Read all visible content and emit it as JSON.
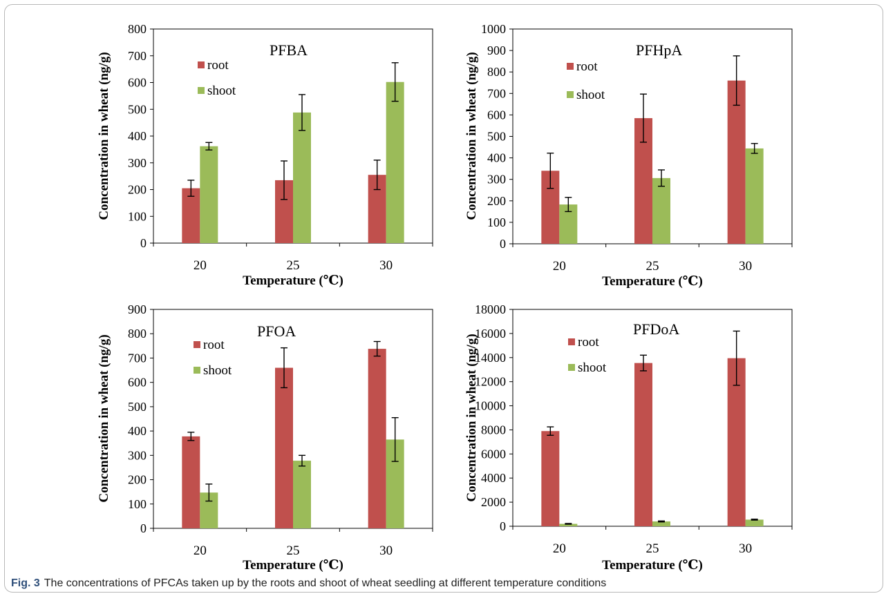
{
  "figure": {
    "caption_label": "Fig. 3",
    "caption_text": "The concentrations of PFCAs taken up by the roots and shoot of wheat seedling at different temperature conditions"
  },
  "colors": {
    "root": "#c0504d",
    "shoot": "#9bbb59",
    "axis": "#000000"
  },
  "chart_data": [
    {
      "type": "bar",
      "title": "PFBA",
      "categories": [
        "20",
        "25",
        "30"
      ],
      "series": [
        {
          "name": "root",
          "values": [
            205,
            235,
            255
          ],
          "errors": [
            30,
            72,
            55
          ]
        },
        {
          "name": "shoot",
          "values": [
            362,
            488,
            602
          ],
          "errors": [
            14,
            67,
            72
          ]
        }
      ],
      "xlabel": "Temperature (℃)",
      "ylabel": "Concentration in wheat (ng/g)",
      "ylim": [
        0,
        800
      ],
      "yticks": [
        0,
        100,
        200,
        300,
        400,
        500,
        600,
        700,
        800
      ],
      "legend": "top-left"
    },
    {
      "type": "bar",
      "title": "PFHpA",
      "categories": [
        "20",
        "25",
        "30"
      ],
      "series": [
        {
          "name": "root",
          "values": [
            340,
            585,
            760
          ],
          "errors": [
            82,
            112,
            115
          ]
        },
        {
          "name": "shoot",
          "values": [
            183,
            306,
            444
          ],
          "errors": [
            33,
            38,
            23
          ]
        }
      ],
      "xlabel": "Temperature (℃)",
      "ylabel": "Concentration in wheat (ng/g)",
      "ylim": [
        0,
        1000
      ],
      "yticks": [
        0,
        100,
        200,
        300,
        400,
        500,
        600,
        700,
        800,
        900,
        1000
      ],
      "legend": "top-left"
    },
    {
      "type": "bar",
      "title": "PFOA",
      "categories": [
        "20",
        "25",
        "30"
      ],
      "series": [
        {
          "name": "root",
          "values": [
            378,
            660,
            738
          ],
          "errors": [
            17,
            82,
            30
          ]
        },
        {
          "name": "shoot",
          "values": [
            147,
            278,
            365
          ],
          "errors": [
            35,
            22,
            90
          ]
        }
      ],
      "xlabel": "Temperature (℃)",
      "ylabel": "Concentration in wheat (ng/g)",
      "ylim": [
        0,
        900
      ],
      "yticks": [
        0,
        100,
        200,
        300,
        400,
        500,
        600,
        700,
        800,
        900
      ],
      "legend": "top-left"
    },
    {
      "type": "bar",
      "title": "PFDoA",
      "categories": [
        "20",
        "25",
        "30"
      ],
      "series": [
        {
          "name": "root",
          "values": [
            7900,
            13550,
            13950
          ],
          "errors": [
            350,
            650,
            2250
          ]
        },
        {
          "name": "shoot",
          "values": [
            200,
            400,
            550
          ],
          "errors": [
            30,
            40,
            40
          ]
        }
      ],
      "xlabel": "Temperature (℃)",
      "ylabel": "Concentration in wheat (ng/g)",
      "ylim": [
        0,
        18000
      ],
      "yticks": [
        0,
        2000,
        4000,
        6000,
        8000,
        10000,
        12000,
        14000,
        16000,
        18000
      ],
      "legend": "top-left"
    }
  ]
}
